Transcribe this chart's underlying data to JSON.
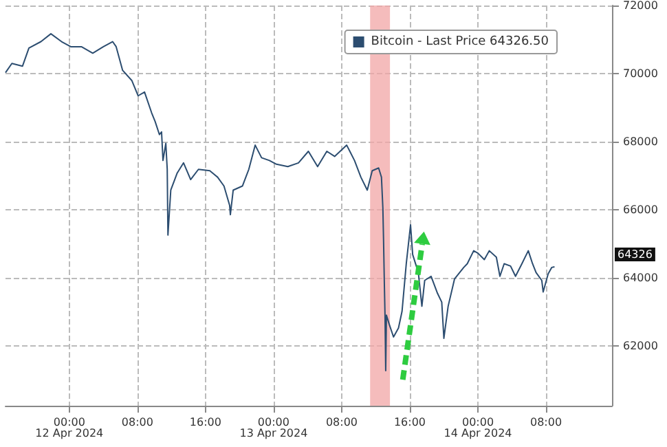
{
  "chart_data": {
    "type": "line",
    "x": [
      "2024-04-11T16:30",
      "2024-04-11T17:15",
      "2024-04-11T18:30",
      "2024-04-11T19:15",
      "2024-04-11T20:40",
      "2024-04-11T21:50",
      "2024-04-11T23:05",
      "2024-04-12T00:10",
      "2024-04-12T01:25",
      "2024-04-12T02:45",
      "2024-04-12T04:00",
      "2024-04-12T05:05",
      "2024-04-12T05:30",
      "2024-04-12T06:15",
      "2024-04-12T07:20",
      "2024-04-12T08:05",
      "2024-04-12T08:50",
      "2024-04-12T09:40",
      "2024-04-12T10:05",
      "2024-04-12T10:35",
      "2024-04-12T10:50",
      "2024-04-12T11:00",
      "2024-04-12T11:20",
      "2024-04-12T11:30",
      "2024-04-12T11:35",
      "2024-04-12T11:55",
      "2024-04-12T12:40",
      "2024-04-12T13:25",
      "2024-04-12T14:15",
      "2024-04-12T15:10",
      "2024-04-12T16:30",
      "2024-04-12T17:25",
      "2024-04-12T18:10",
      "2024-04-12T18:50",
      "2024-04-12T18:55",
      "2024-04-12T19:15",
      "2024-04-12T20:20",
      "2024-04-12T21:05",
      "2024-04-12T21:50",
      "2024-04-12T22:35",
      "2024-04-12T23:30",
      "2024-04-13T00:20",
      "2024-04-13T01:40",
      "2024-04-13T02:55",
      "2024-04-13T04:05",
      "2024-04-13T05:10",
      "2024-04-13T06:15",
      "2024-04-13T07:10",
      "2024-04-13T08:35",
      "2024-04-13T09:30",
      "2024-04-13T10:15",
      "2024-04-13T11:00",
      "2024-04-13T11:35",
      "2024-04-13T12:20",
      "2024-04-13T12:40",
      "2024-04-13T12:50",
      "2024-04-13T12:55",
      "2024-04-13T13:00",
      "2024-04-13T13:05",
      "2024-04-13T13:10",
      "2024-04-13T13:15",
      "2024-04-13T13:35",
      "2024-04-13T14:05",
      "2024-04-13T14:40",
      "2024-04-13T15:05",
      "2024-04-13T15:35",
      "2024-04-13T16:05",
      "2024-04-13T16:20",
      "2024-04-13T17:00",
      "2024-04-13T17:25",
      "2024-04-13T17:45",
      "2024-04-13T18:30",
      "2024-04-13T19:15",
      "2024-04-13T19:45",
      "2024-04-13T20:00",
      "2024-04-13T20:30",
      "2024-04-13T21:15",
      "2024-04-13T22:20",
      "2024-04-13T22:45",
      "2024-04-13T23:30",
      "2024-04-14T00:00",
      "2024-04-14T00:45",
      "2024-04-14T01:20",
      "2024-04-14T02:10",
      "2024-04-14T02:35",
      "2024-04-14T03:05",
      "2024-04-14T03:50",
      "2024-04-14T04:25",
      "2024-04-14T05:10",
      "2024-04-14T05:55",
      "2024-04-14T06:25",
      "2024-04-14T06:50",
      "2024-04-14T07:30",
      "2024-04-14T07:40",
      "2024-04-14T08:15",
      "2024-04-14T08:40",
      "2024-04-14T09:00"
    ],
    "series": [
      {
        "name": "Bitcoin - Last Price 64326.50",
        "color": "#2c4d70",
        "values": [
          70030,
          70300,
          70220,
          70750,
          70940,
          71170,
          70940,
          70790,
          70790,
          70600,
          70790,
          70940,
          70790,
          70100,
          69800,
          69350,
          69460,
          68850,
          68590,
          68210,
          68290,
          67450,
          67950,
          67190,
          65260,
          66580,
          67080,
          67380,
          66890,
          67190,
          67150,
          66960,
          66700,
          66130,
          65860,
          66580,
          66700,
          67190,
          67900,
          67530,
          67450,
          67340,
          67270,
          67380,
          67720,
          67270,
          67720,
          67570,
          67900,
          67450,
          66960,
          66580,
          67150,
          67230,
          66960,
          66050,
          65070,
          63930,
          62910,
          61280,
          62910,
          62640,
          62270,
          62530,
          63020,
          64420,
          65560,
          64690,
          64160,
          63170,
          63930,
          64050,
          63550,
          63290,
          62230,
          63170,
          63970,
          64310,
          64420,
          64800,
          64730,
          64540,
          64800,
          64610,
          64050,
          64420,
          64350,
          64050,
          64420,
          64800,
          64420,
          64160,
          63930,
          63590,
          64120,
          64310,
          64330
        ]
      }
    ],
    "xlim": [
      "2024-04-11T16:30",
      "2024-04-14T15:45"
    ],
    "xticks": [
      {
        "value": "2024-04-12T00:00",
        "label": "00:00\n12 Apr 2024"
      },
      {
        "value": "2024-04-12T08:00",
        "label": "08:00"
      },
      {
        "value": "2024-04-12T16:00",
        "label": "16:00"
      },
      {
        "value": "2024-04-13T00:00",
        "label": "00:00\n13 Apr 2024"
      },
      {
        "value": "2024-04-13T08:00",
        "label": "08:00"
      },
      {
        "value": "2024-04-13T16:00",
        "label": "16:00"
      },
      {
        "value": "2024-04-14T00:00",
        "label": "00:00\n14 Apr 2024"
      },
      {
        "value": "2024-04-14T08:00",
        "label": "08:00"
      }
    ],
    "ylim": [
      60250,
      72000
    ],
    "yticks": [
      62000,
      64000,
      66000,
      68000,
      70000,
      72000
    ],
    "bands": [
      {
        "axis": "x",
        "from": "2024-04-13T11:20",
        "to": "2024-04-13T13:40",
        "color": "#f2a6a6"
      }
    ],
    "annotations": [
      "64326"
    ],
    "grid": true,
    "legend": "top right",
    "line_style": "solid",
    "marker": "none"
  }
}
